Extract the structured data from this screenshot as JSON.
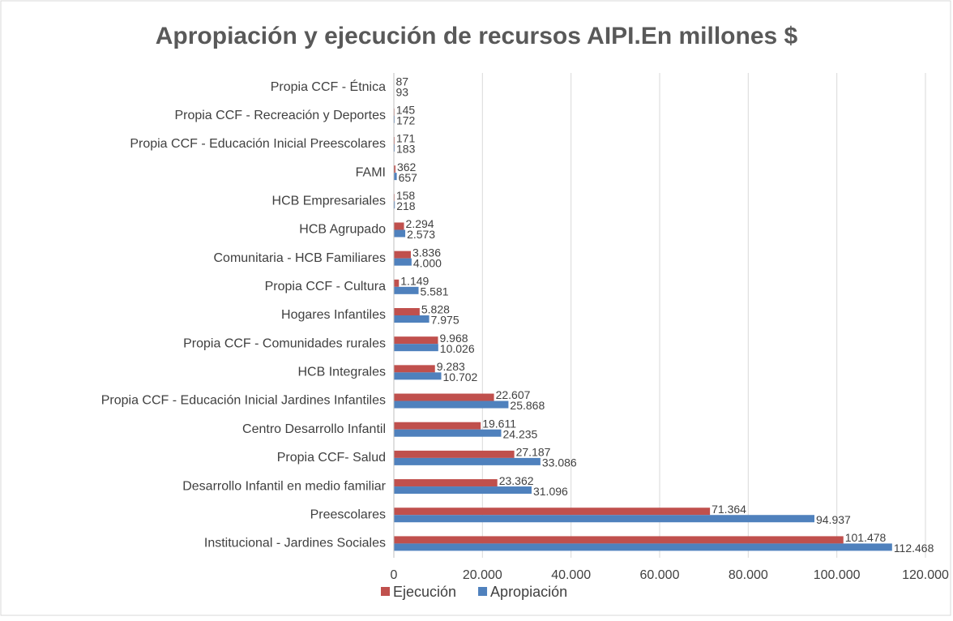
{
  "chart_data": {
    "type": "bar",
    "orientation": "horizontal",
    "title": "Apropiación y ejecución de recursos AIPI.En millones $",
    "categories": [
      "Propia CCF - Étnica",
      "Propia CCF - Recreación y Deportes",
      "Propia CCF - Educación Inicial Preescolares",
      "FAMI",
      "HCB Empresariales",
      "HCB Agrupado",
      "Comunitaria - HCB Familiares",
      "Propia CCF - Cultura",
      "Hogares Infantiles",
      "Propia CCF - Comunidades rurales",
      "HCB Integrales",
      "Propia CCF - Educación Inicial Jardines Infantiles",
      "Centro Desarrollo Infantil",
      "Propia CCF- Salud",
      "Desarrollo Infantil en medio familiar",
      "Preescolares",
      "Institucional - Jardines Sociales"
    ],
    "series": [
      {
        "name": "Ejecución",
        "color": "#c0504d",
        "values": [
          87,
          145,
          171,
          362,
          158,
          2294,
          3836,
          1149,
          5828,
          9968,
          9283,
          22607,
          19611,
          27187,
          23362,
          71364,
          101478
        ],
        "value_labels": [
          "87",
          "145",
          "171",
          "362",
          "158",
          "2.294",
          "3.836",
          "1.149",
          "5.828",
          "9.968",
          "9.283",
          "22.607",
          "19.611",
          "27.187",
          "23.362",
          "71.364",
          "101.478"
        ]
      },
      {
        "name": "Apropiación",
        "color": "#4f81bd",
        "values": [
          93,
          172,
          183,
          657,
          218,
          2573,
          4000,
          5581,
          7975,
          10026,
          10702,
          25868,
          24235,
          33086,
          31096,
          94937,
          112468
        ],
        "value_labels": [
          "93",
          "172",
          "183",
          "657",
          "218",
          "2.573",
          "4.000",
          "5.581",
          "7.975",
          "10.026",
          "10.702",
          "25.868",
          "24.235",
          "33.086",
          "31.096",
          "94.937",
          "112.468"
        ]
      }
    ],
    "xlim": [
      0,
      120000
    ],
    "xticks": [
      0,
      {
        "value": 20000,
        "label": "20.000"
      },
      {
        "value": 40000,
        "label": "40.000"
      },
      {
        "value": 60000,
        "label": "60.000"
      },
      {
        "value": 80000,
        "label": "80.000"
      },
      {
        "value": 100000,
        "label": "100.000"
      },
      {
        "value": 120000,
        "label": "120.000"
      }
    ],
    "grid": true,
    "legend": "bottom"
  }
}
